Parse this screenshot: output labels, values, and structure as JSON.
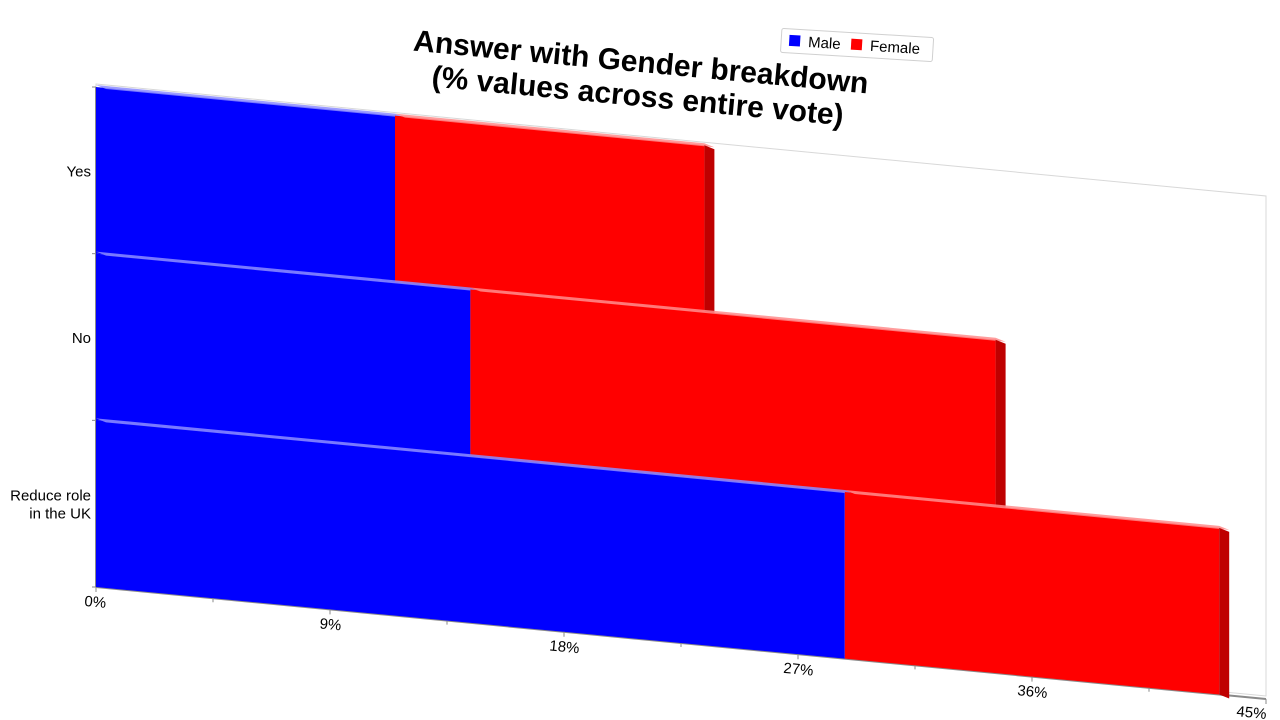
{
  "chart_data": {
    "type": "bar",
    "orientation": "horizontal",
    "stacked": true,
    "title": "Answer with Gender breakdown\n(% values across entire vote)",
    "categories": [
      "Yes",
      "No",
      "Reduce role\nin the UK"
    ],
    "series": [
      {
        "name": "Male",
        "color": "#0000ff",
        "values": [
          11.5,
          14.4,
          28.8
        ]
      },
      {
        "name": "Female",
        "color": "#ff0000",
        "values": [
          11.9,
          20.2,
          14.4
        ]
      }
    ],
    "xlim": [
      0,
      45
    ],
    "xticks": [
      "0%",
      "9%",
      "18%",
      "27%",
      "36%",
      "45%"
    ],
    "legend_position": "top-right",
    "grid": false
  }
}
